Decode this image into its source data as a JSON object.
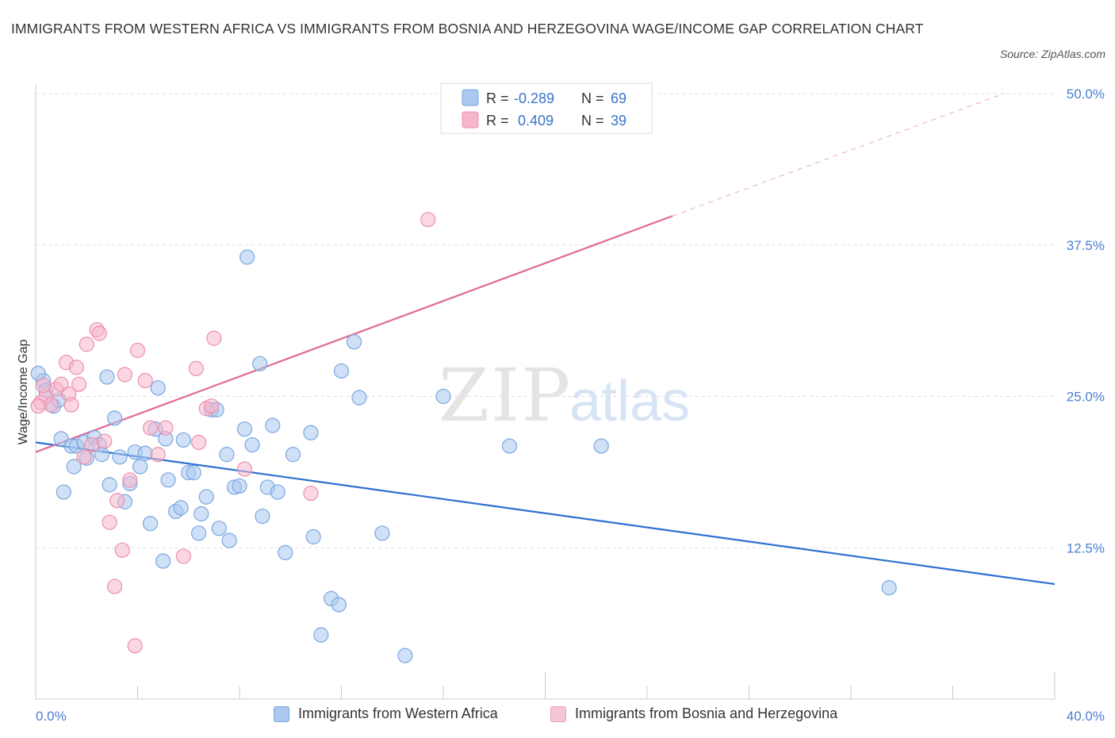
{
  "title": "IMMIGRANTS FROM WESTERN AFRICA VS IMMIGRANTS FROM BOSNIA AND HERZEGOVINA WAGE/INCOME GAP CORRELATION CHART",
  "source": "Source: ZipAtlas.com",
  "watermark": {
    "zip": "ZIP",
    "atlas": "atlas"
  },
  "colors": {
    "blue_fill": "#aac8f0",
    "blue_stroke": "#7aa6e0",
    "blue_line": "#2f6fd0",
    "pink_fill": "#f6b6ca",
    "pink_stroke": "#ec8fae",
    "pink_line": "#e06a94",
    "grid": "#dddddd",
    "tick_label": "#4a7fd0"
  },
  "stats_legend": [
    {
      "r_label": "R =",
      "r_value": "-0.289",
      "n_label": "N =",
      "n_value": "69"
    },
    {
      "r_label": "R =",
      "r_value": " 0.409",
      "n_label": "N =",
      "n_value": "39"
    }
  ],
  "chart_data": {
    "type": "scatter",
    "title": "IMMIGRANTS FROM WESTERN AFRICA VS IMMIGRANTS FROM BOSNIA AND HERZEGOVINA WAGE/INCOME GAP CORRELATION CHART",
    "xlabel": "",
    "ylabel": "Wage/Income Gap",
    "xlim": [
      0,
      40
    ],
    "ylim": [
      0,
      50
    ],
    "x_tick_labels": [
      "0.0%",
      "40.0%"
    ],
    "y_tick_values": [
      12.5,
      25.0,
      37.5,
      50.0
    ],
    "y_tick_labels": [
      "12.5%",
      "25.0%",
      "37.5%",
      "50.0%"
    ],
    "grid": true,
    "legend_position": "bottom",
    "series": [
      {
        "name": "Immigrants from Western Africa",
        "color": "#aac8f0",
        "trend": {
          "x": [
            0,
            40
          ],
          "y": [
            21.2,
            9.5
          ],
          "style": "solid"
        },
        "points": [
          [
            0.3,
            26.3
          ],
          [
            0.4,
            25.5
          ],
          [
            0.7,
            24.2
          ],
          [
            0.9,
            24.7
          ],
          [
            1.0,
            21.5
          ],
          [
            1.1,
            17.1
          ],
          [
            1.4,
            20.9
          ],
          [
            1.5,
            19.2
          ],
          [
            1.6,
            20.9
          ],
          [
            1.9,
            21.2
          ],
          [
            2.0,
            19.9
          ],
          [
            2.3,
            21.6
          ],
          [
            2.5,
            21.0
          ],
          [
            2.6,
            20.2
          ],
          [
            2.8,
            26.6
          ],
          [
            2.9,
            17.7
          ],
          [
            3.1,
            23.2
          ],
          [
            3.3,
            20.0
          ],
          [
            3.5,
            16.3
          ],
          [
            3.7,
            17.8
          ],
          [
            3.9,
            20.4
          ],
          [
            4.1,
            19.2
          ],
          [
            4.3,
            20.3
          ],
          [
            4.5,
            14.5
          ],
          [
            4.7,
            22.3
          ],
          [
            4.8,
            25.7
          ],
          [
            5.0,
            11.4
          ],
          [
            5.1,
            21.5
          ],
          [
            5.2,
            18.1
          ],
          [
            5.5,
            15.5
          ],
          [
            5.7,
            15.8
          ],
          [
            5.8,
            21.4
          ],
          [
            6.0,
            18.7
          ],
          [
            6.2,
            18.7
          ],
          [
            6.4,
            13.7
          ],
          [
            6.5,
            15.3
          ],
          [
            6.7,
            16.7
          ],
          [
            6.9,
            23.9
          ],
          [
            7.1,
            23.9
          ],
          [
            7.2,
            14.1
          ],
          [
            7.5,
            20.2
          ],
          [
            7.6,
            13.1
          ],
          [
            7.8,
            17.5
          ],
          [
            8.0,
            17.6
          ],
          [
            8.2,
            22.3
          ],
          [
            8.3,
            36.5
          ],
          [
            8.5,
            21.0
          ],
          [
            8.8,
            27.7
          ],
          [
            8.9,
            15.1
          ],
          [
            9.1,
            17.5
          ],
          [
            9.3,
            22.6
          ],
          [
            9.5,
            17.1
          ],
          [
            9.8,
            12.1
          ],
          [
            10.1,
            20.2
          ],
          [
            10.8,
            22.0
          ],
          [
            10.9,
            13.4
          ],
          [
            11.2,
            5.3
          ],
          [
            11.6,
            8.3
          ],
          [
            11.9,
            7.8
          ],
          [
            12.0,
            27.1
          ],
          [
            12.5,
            29.5
          ],
          [
            12.7,
            24.9
          ],
          [
            13.6,
            13.7
          ],
          [
            14.5,
            3.6
          ],
          [
            16.0,
            25.0
          ],
          [
            18.6,
            20.9
          ],
          [
            22.2,
            20.9
          ],
          [
            33.5,
            9.2
          ],
          [
            0.1,
            26.9
          ]
        ]
      },
      {
        "name": "Immigrants from Bosnia and Herzegovina",
        "color": "#f6b6ca",
        "trend": {
          "x": [
            0,
            25
          ],
          "y": [
            20.4,
            39.9
          ],
          "extended_to": [
            38,
            50
          ],
          "style": "solid+dashed"
        },
        "points": [
          [
            0.2,
            24.5
          ],
          [
            0.4,
            25.0
          ],
          [
            0.6,
            24.3
          ],
          [
            0.8,
            25.6
          ],
          [
            1.0,
            26.0
          ],
          [
            1.2,
            27.8
          ],
          [
            1.3,
            25.2
          ],
          [
            1.4,
            24.3
          ],
          [
            1.6,
            27.4
          ],
          [
            1.7,
            26.0
          ],
          [
            1.9,
            20.0
          ],
          [
            2.0,
            29.3
          ],
          [
            2.2,
            21.0
          ],
          [
            2.4,
            30.5
          ],
          [
            2.5,
            30.2
          ],
          [
            2.7,
            21.3
          ],
          [
            2.9,
            14.6
          ],
          [
            3.1,
            9.3
          ],
          [
            3.2,
            16.4
          ],
          [
            3.4,
            12.3
          ],
          [
            3.5,
            26.8
          ],
          [
            3.7,
            18.1
          ],
          [
            3.9,
            4.4
          ],
          [
            4.0,
            28.8
          ],
          [
            4.3,
            26.3
          ],
          [
            4.5,
            22.4
          ],
          [
            4.8,
            20.2
          ],
          [
            5.1,
            22.4
          ],
          [
            5.8,
            11.8
          ],
          [
            6.3,
            27.3
          ],
          [
            6.4,
            21.2
          ],
          [
            6.7,
            24.0
          ],
          [
            7.0,
            29.8
          ],
          [
            8.2,
            19.0
          ],
          [
            10.8,
            17.0
          ],
          [
            15.4,
            39.6
          ],
          [
            0.1,
            24.2
          ],
          [
            0.3,
            25.9
          ],
          [
            6.9,
            24.2
          ]
        ]
      }
    ]
  }
}
